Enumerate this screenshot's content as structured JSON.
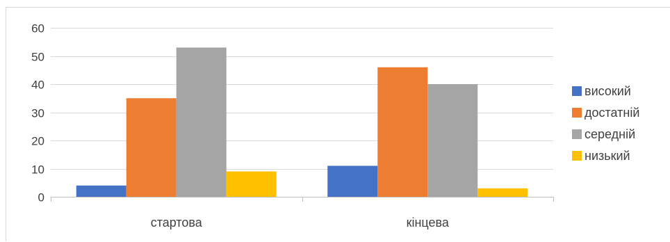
{
  "chart_data": {
    "type": "bar",
    "categories": [
      "стартова",
      "кінцева"
    ],
    "series": [
      {
        "name": "високий",
        "values": [
          4,
          11
        ],
        "color": "#4472C4"
      },
      {
        "name": "достатній",
        "values": [
          35,
          46
        ],
        "color": "#ED7D31"
      },
      {
        "name": "середній",
        "values": [
          53,
          40
        ],
        "color": "#A5A5A5"
      },
      {
        "name": "низький",
        "values": [
          9,
          3
        ],
        "color": "#FFC000"
      }
    ],
    "ylim": [
      0,
      60
    ],
    "yticks": [
      0,
      10,
      20,
      30,
      40,
      50,
      60
    ],
    "grid": true,
    "legend": "right"
  }
}
